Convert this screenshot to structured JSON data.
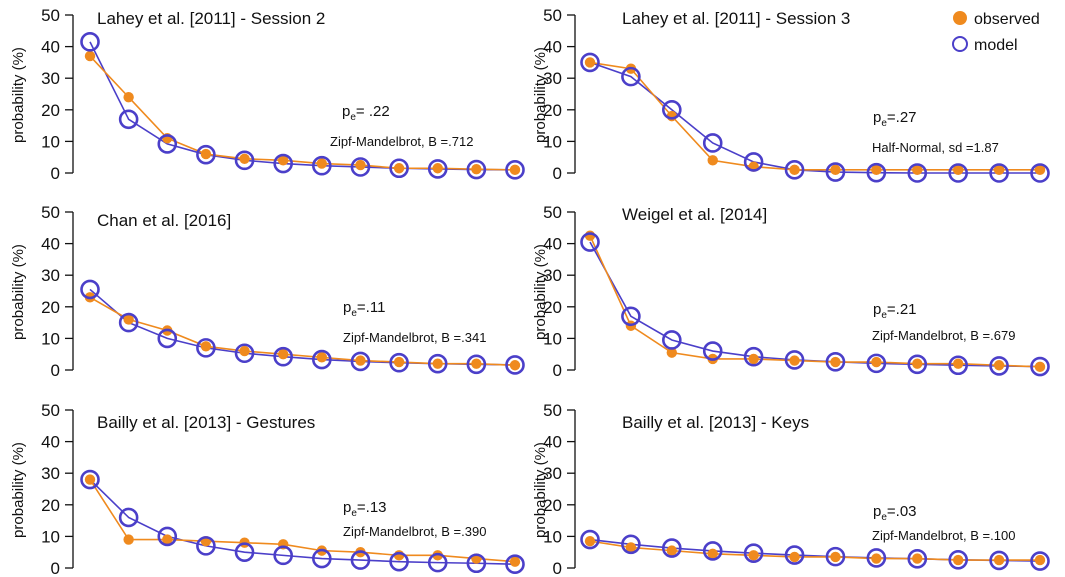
{
  "colors": {
    "observed": "#ef8a1e",
    "model": "#4b3fc9",
    "axis": "#111111"
  },
  "legend": {
    "position": "top-right",
    "observed_label": "observed",
    "model_label": "model"
  },
  "chart_data": [
    {
      "type": "line",
      "title": "Lahey et al. [2011] - Session 2",
      "ylabel": "probability (%)",
      "ylim": [
        0,
        50
      ],
      "yticks": [
        0,
        10,
        20,
        30,
        40,
        50
      ],
      "x": [
        1,
        2,
        3,
        4,
        5,
        6,
        7,
        8,
        9,
        10,
        11,
        12
      ],
      "series": [
        {
          "name": "observed",
          "values": [
            37,
            24,
            11,
            6,
            4.5,
            4,
            3,
            2.5,
            1.5,
            1.5,
            1.2,
            1
          ]
        },
        {
          "name": "model",
          "values": [
            41.5,
            17,
            9.2,
            5.8,
            4,
            3,
            2.3,
            1.9,
            1.5,
            1.3,
            1.1,
            1
          ]
        }
      ],
      "pe_prefix": "p",
      "pe_sub": "e",
      "pe_value": "= .22",
      "fit": "Zipf-Mandelbrot, B =.712"
    },
    {
      "type": "line",
      "title": "Lahey et al. [2011] - Session 3",
      "ylabel": "probability (%)",
      "ylim": [
        0,
        50
      ],
      "yticks": [
        0,
        10,
        20,
        30,
        40,
        50
      ],
      "x": [
        1,
        2,
        3,
        4,
        5,
        6,
        7,
        8,
        9,
        10,
        11,
        12
      ],
      "series": [
        {
          "name": "observed",
          "values": [
            35,
            33,
            18,
            4,
            2,
            1,
            1,
            1,
            1,
            1,
            1,
            1
          ]
        },
        {
          "name": "model",
          "values": [
            35,
            30.5,
            20,
            9.5,
            3.5,
            1,
            0.3,
            0.1,
            0,
            0,
            0,
            0
          ]
        }
      ],
      "pe_prefix": "p",
      "pe_sub": "e",
      "pe_value": "=.27",
      "fit": "Half-Normal, sd =1.87"
    },
    {
      "type": "line",
      "title": "Chan et al. [2016]",
      "ylabel": "probability (%)",
      "ylim": [
        0,
        50
      ],
      "yticks": [
        0,
        10,
        20,
        30,
        40,
        50
      ],
      "x": [
        1,
        2,
        3,
        4,
        5,
        6,
        7,
        8,
        9,
        10,
        11,
        12
      ],
      "series": [
        {
          "name": "observed",
          "values": [
            23,
            16,
            12.5,
            7.5,
            6,
            5,
            4,
            3,
            2.5,
            2,
            2,
            1.5
          ]
        },
        {
          "name": "model",
          "values": [
            25.5,
            15,
            10,
            7,
            5.3,
            4.2,
            3.3,
            2.7,
            2.3,
            2,
            1.8,
            1.6
          ]
        }
      ],
      "pe_prefix": "p",
      "pe_sub": "e",
      "pe_value": "=.11",
      "fit": "Zipf-Mandelbrot, B =.341"
    },
    {
      "type": "line",
      "title": "Weigel et al. [2014]",
      "ylabel": "probability (%)",
      "ylim": [
        0,
        50
      ],
      "yticks": [
        0,
        10,
        20,
        30,
        40,
        50
      ],
      "x": [
        1,
        2,
        3,
        4,
        5,
        6,
        7,
        8,
        9,
        10,
        11,
        12
      ],
      "series": [
        {
          "name": "observed",
          "values": [
            42.5,
            14,
            5.5,
            3.5,
            3.5,
            3,
            2.5,
            2.5,
            2,
            2,
            1.5,
            1
          ]
        },
        {
          "name": "model",
          "values": [
            40.5,
            17,
            9.5,
            6,
            4.2,
            3.2,
            2.6,
            2.1,
            1.8,
            1.5,
            1.3,
            1.1
          ]
        }
      ],
      "pe_prefix": "p",
      "pe_sub": "e",
      "pe_value": "=.21",
      "fit": "Zipf-Mandelbrot, B =.679"
    },
    {
      "type": "line",
      "title": "Bailly et al. [2013] - Gestures",
      "ylabel": "probability (%)",
      "ylim": [
        0,
        50
      ],
      "yticks": [
        0,
        10,
        20,
        30,
        40,
        50
      ],
      "x": [
        1,
        2,
        3,
        4,
        5,
        6,
        7,
        8,
        9,
        10,
        11,
        12
      ],
      "series": [
        {
          "name": "observed",
          "values": [
            28,
            9,
            9,
            8.5,
            8,
            7.5,
            5.5,
            5,
            4,
            4,
            3,
            2
          ]
        },
        {
          "name": "model",
          "values": [
            28,
            16,
            10,
            7,
            5,
            4,
            3,
            2.5,
            2,
            1.7,
            1.5,
            1.2
          ]
        }
      ],
      "pe_prefix": "p",
      "pe_sub": "e",
      "pe_value": "=.13",
      "fit": "Zipf-Mandelbrot, B =.390"
    },
    {
      "type": "line",
      "title": "Bailly et al. [2013] - Keys",
      "ylabel": "probability (%)",
      "ylim": [
        0,
        50
      ],
      "yticks": [
        0,
        10,
        20,
        30,
        40,
        50
      ],
      "x": [
        1,
        2,
        3,
        4,
        5,
        6,
        7,
        8,
        9,
        10,
        11,
        12
      ],
      "series": [
        {
          "name": "observed",
          "values": [
            8.5,
            6.5,
            5.5,
            4.5,
            4,
            3.5,
            3.5,
            3,
            3,
            2.5,
            2.5,
            2.5
          ]
        },
        {
          "name": "model",
          "values": [
            9,
            7.5,
            6.3,
            5.4,
            4.7,
            4.1,
            3.6,
            3.2,
            2.9,
            2.6,
            2.4,
            2.2
          ]
        }
      ],
      "pe_prefix": "p",
      "pe_sub": "e",
      "pe_value": "=.03",
      "fit": "Zipf-Mandelbrot, B =.100"
    }
  ]
}
